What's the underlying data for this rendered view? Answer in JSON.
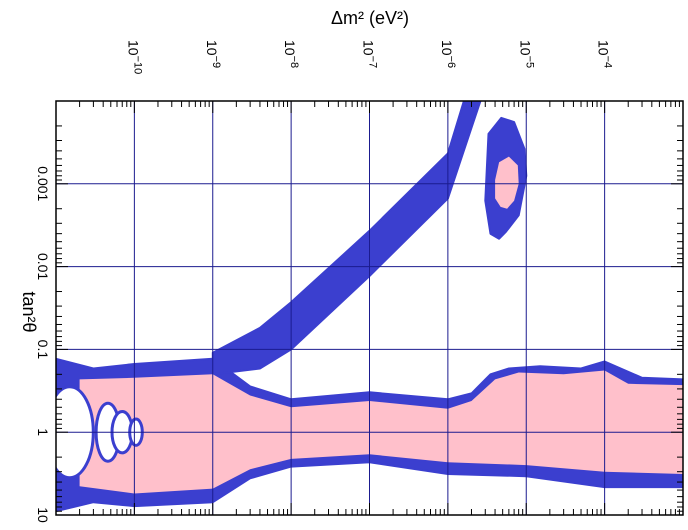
{
  "chart_data": {
    "type": "area",
    "xlabel": "Δm² (eV²)",
    "ylabel": "tan²θ",
    "x_scale": "log",
    "y_scale": "log",
    "xlim": [
      1e-11,
      0.001
    ],
    "ylim": [
      0.0001,
      10
    ],
    "x_major_ticks": [
      {
        "value": 1e-10,
        "base": "10",
        "exp": "−10"
      },
      {
        "value": 1e-09,
        "base": "10",
        "exp": "−9"
      },
      {
        "value": 1e-08,
        "base": "10",
        "exp": "−8"
      },
      {
        "value": 1e-07,
        "base": "10",
        "exp": "−7"
      },
      {
        "value": 1e-06,
        "base": "10",
        "exp": "−6"
      },
      {
        "value": 1e-05,
        "base": "10",
        "exp": "−5"
      },
      {
        "value": 0.0001,
        "base": "10",
        "exp": "−4"
      }
    ],
    "y_major_ticks": [
      {
        "value": 0.001,
        "label": "0.001"
      },
      {
        "value": 0.01,
        "label": "0.01"
      },
      {
        "value": 0.1,
        "label": "0.1"
      },
      {
        "value": 1,
        "label": "1"
      },
      {
        "value": 10,
        "label": "10"
      }
    ],
    "grid": true,
    "colors": {
      "outer_region": "#3b3fcf",
      "inner_region": "#ffc0cb",
      "grid": "#1b1b8f",
      "frame": "#000000"
    },
    "regions": [
      {
        "id": "large-mixing-blue",
        "level": "outer",
        "upper": [
          [
            1e-11,
            0.13
          ],
          [
            3e-11,
            0.17
          ],
          [
            1e-10,
            0.15
          ],
          [
            1e-09,
            0.13
          ],
          [
            3e-09,
            0.28
          ],
          [
            1e-08,
            0.4
          ],
          [
            1e-07,
            0.33
          ],
          [
            1e-06,
            0.4
          ],
          [
            2e-06,
            0.34
          ],
          [
            3.5e-06,
            0.2
          ],
          [
            6e-06,
            0.17
          ],
          [
            1.5e-05,
            0.16
          ],
          [
            5e-05,
            0.17
          ],
          [
            0.0001,
            0.14
          ],
          [
            0.0003,
            0.22
          ],
          [
            0.001,
            0.23
          ]
        ],
        "lower": [
          [
            1e-11,
            9
          ],
          [
            3e-11,
            7
          ],
          [
            1e-10,
            7.8
          ],
          [
            1e-09,
            7
          ],
          [
            3e-09,
            3.6
          ],
          [
            1e-08,
            2.6
          ],
          [
            1e-07,
            2.3
          ],
          [
            1e-06,
            3.2
          ],
          [
            1e-05,
            3.4
          ],
          [
            0.0001,
            4.6
          ],
          [
            0.001,
            4.6
          ]
        ]
      },
      {
        "id": "large-mixing-pink",
        "level": "inner",
        "upper": [
          [
            2e-11,
            0.23
          ],
          [
            1e-10,
            0.22
          ],
          [
            1e-09,
            0.2
          ],
          [
            3e-09,
            0.36
          ],
          [
            1e-08,
            0.5
          ],
          [
            1e-07,
            0.42
          ],
          [
            1e-06,
            0.52
          ],
          [
            2e-06,
            0.42
          ],
          [
            4e-06,
            0.23
          ],
          [
            8e-06,
            0.19
          ],
          [
            3e-05,
            0.2
          ],
          [
            0.0001,
            0.18
          ],
          [
            0.0002,
            0.26
          ],
          [
            0.001,
            0.27
          ]
        ],
        "lower": [
          [
            2e-11,
            4.5
          ],
          [
            1e-10,
            5.5
          ],
          [
            1e-09,
            4.8
          ],
          [
            3e-09,
            2.8
          ],
          [
            1e-08,
            2.1
          ],
          [
            1e-07,
            1.85
          ],
          [
            1e-06,
            2.3
          ],
          [
            1e-05,
            2.5
          ],
          [
            0.0001,
            3.0
          ],
          [
            0.001,
            3.2
          ]
        ]
      },
      {
        "id": "small-mixing-blue",
        "level": "outer",
        "upper": [
          [
            1e-09,
            0.11
          ],
          [
            4e-09,
            0.055
          ],
          [
            1e-08,
            0.027
          ],
          [
            1e-07,
            0.0037
          ],
          [
            1e-06,
            0.00043
          ],
          [
            1.6e-06,
            0.0001
          ]
        ],
        "lower": [
          [
            1e-09,
            0.2
          ],
          [
            4e-09,
            0.17
          ],
          [
            1e-08,
            0.1
          ],
          [
            1e-07,
            0.013
          ],
          [
            1e-06,
            0.0015
          ],
          [
            2.6e-06,
            0.0001
          ]
        ]
      },
      {
        "id": "just-so-blue",
        "level": "outer",
        "upper": [
          [
            3.3e-06,
            0.00025
          ],
          [
            4.8e-06,
            0.00016
          ],
          [
            7e-06,
            0.00018
          ],
          [
            9.5e-06,
            0.00038
          ],
          [
            1e-05,
            0.0008
          ],
          [
            8e-06,
            0.0024
          ]
        ],
        "lower": [
          [
            3.3e-06,
            0.00025
          ],
          [
            3e-06,
            0.0016
          ],
          [
            3.5e-06,
            0.004
          ],
          [
            4.5e-06,
            0.0046
          ],
          [
            5.5e-06,
            0.0038
          ],
          [
            8e-06,
            0.0024
          ]
        ]
      },
      {
        "id": "just-so-pink",
        "level": "inner",
        "upper": [
          [
            4.5e-06,
            0.00055
          ],
          [
            6e-06,
            0.00047
          ],
          [
            7.8e-06,
            0.0006
          ],
          [
            8e-06,
            0.001
          ],
          [
            7e-06,
            0.0016
          ],
          [
            5.7e-06,
            0.002
          ]
        ],
        "lower": [
          [
            4.5e-06,
            0.00055
          ],
          [
            4e-06,
            0.0009
          ],
          [
            4e-06,
            0.0015
          ],
          [
            4.7e-06,
            0.0019
          ],
          [
            5.7e-06,
            0.002
          ]
        ]
      }
    ],
    "holes": [
      {
        "x": 1.5e-11,
        "y": 1.0,
        "rx": 0.3,
        "ry": 0.55
      },
      {
        "x": 4.6e-11,
        "y": 1.0,
        "rx": 0.15,
        "ry": 0.35
      },
      {
        "x": 7e-11,
        "y": 1.0,
        "rx": 0.13,
        "ry": 0.25
      },
      {
        "x": 1.05e-10,
        "y": 1.0,
        "rx": 0.08,
        "ry": 0.16
      }
    ]
  }
}
